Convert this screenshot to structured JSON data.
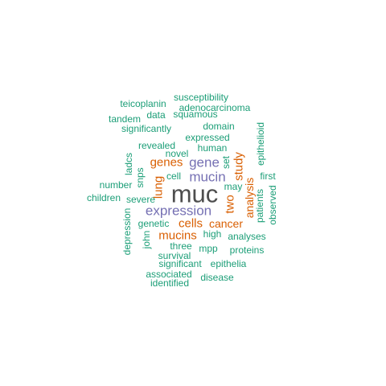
{
  "palette": {
    "teal": "#1b9e77",
    "orange": "#d95f02",
    "purple": "#7570b3",
    "gray": "#4d4d4d"
  },
  "words": [
    {
      "text": "muc",
      "weight": 10,
      "color": "gray",
      "orientation": "horizontal"
    },
    {
      "text": "expression",
      "weight": 6,
      "color": "purple",
      "orientation": "horizontal"
    },
    {
      "text": "mucin",
      "weight": 6,
      "color": "purple",
      "orientation": "horizontal"
    },
    {
      "text": "gene",
      "weight": 6,
      "color": "purple",
      "orientation": "horizontal"
    },
    {
      "text": "genes",
      "weight": 5,
      "color": "orange",
      "orientation": "horizontal"
    },
    {
      "text": "cells",
      "weight": 5,
      "color": "orange",
      "orientation": "horizontal"
    },
    {
      "text": "mucins",
      "weight": 5,
      "color": "orange",
      "orientation": "horizontal"
    },
    {
      "text": "cancer",
      "weight": 5,
      "color": "orange",
      "orientation": "horizontal"
    },
    {
      "text": "lung",
      "weight": 5,
      "color": "orange",
      "orientation": "vertical"
    },
    {
      "text": "two",
      "weight": 5,
      "color": "orange",
      "orientation": "vertical"
    },
    {
      "text": "study",
      "weight": 5,
      "color": "orange",
      "orientation": "vertical"
    },
    {
      "text": "analysis",
      "weight": 5,
      "color": "orange",
      "orientation": "vertical"
    },
    {
      "text": "susceptibility",
      "weight": 3,
      "color": "teal",
      "orientation": "horizontal"
    },
    {
      "text": "teicoplanin",
      "weight": 3,
      "color": "teal",
      "orientation": "horizontal"
    },
    {
      "text": "adenocarcinoma",
      "weight": 3,
      "color": "teal",
      "orientation": "horizontal"
    },
    {
      "text": "data",
      "weight": 3,
      "color": "teal",
      "orientation": "horizontal"
    },
    {
      "text": "squamous",
      "weight": 3,
      "color": "teal",
      "orientation": "horizontal"
    },
    {
      "text": "tandem",
      "weight": 3,
      "color": "teal",
      "orientation": "horizontal"
    },
    {
      "text": "significantly",
      "weight": 3,
      "color": "teal",
      "orientation": "horizontal"
    },
    {
      "text": "domain",
      "weight": 3,
      "color": "teal",
      "orientation": "horizontal"
    },
    {
      "text": "expressed",
      "weight": 3,
      "color": "teal",
      "orientation": "horizontal"
    },
    {
      "text": "revealed",
      "weight": 3,
      "color": "teal",
      "orientation": "horizontal"
    },
    {
      "text": "human",
      "weight": 3,
      "color": "teal",
      "orientation": "horizontal"
    },
    {
      "text": "novel",
      "weight": 3,
      "color": "teal",
      "orientation": "horizontal"
    },
    {
      "text": "cell",
      "weight": 3,
      "color": "teal",
      "orientation": "horizontal"
    },
    {
      "text": "number",
      "weight": 3,
      "color": "teal",
      "orientation": "horizontal"
    },
    {
      "text": "children",
      "weight": 3,
      "color": "teal",
      "orientation": "horizontal"
    },
    {
      "text": "severe",
      "weight": 3,
      "color": "teal",
      "orientation": "horizontal"
    },
    {
      "text": "may",
      "weight": 3,
      "color": "teal",
      "orientation": "horizontal"
    },
    {
      "text": "first",
      "weight": 3,
      "color": "teal",
      "orientation": "horizontal"
    },
    {
      "text": "genetic",
      "weight": 3,
      "color": "teal",
      "orientation": "horizontal"
    },
    {
      "text": "high",
      "weight": 3,
      "color": "teal",
      "orientation": "horizontal"
    },
    {
      "text": "analyses",
      "weight": 3,
      "color": "teal",
      "orientation": "horizontal"
    },
    {
      "text": "three",
      "weight": 3,
      "color": "teal",
      "orientation": "horizontal"
    },
    {
      "text": "mpp",
      "weight": 3,
      "color": "teal",
      "orientation": "horizontal"
    },
    {
      "text": "proteins",
      "weight": 3,
      "color": "teal",
      "orientation": "horizontal"
    },
    {
      "text": "survival",
      "weight": 3,
      "color": "teal",
      "orientation": "horizontal"
    },
    {
      "text": "significant",
      "weight": 3,
      "color": "teal",
      "orientation": "horizontal"
    },
    {
      "text": "epithelia",
      "weight": 3,
      "color": "teal",
      "orientation": "horizontal"
    },
    {
      "text": "associated",
      "weight": 3,
      "color": "teal",
      "orientation": "horizontal"
    },
    {
      "text": "disease",
      "weight": 3,
      "color": "teal",
      "orientation": "horizontal"
    },
    {
      "text": "identified",
      "weight": 3,
      "color": "teal",
      "orientation": "horizontal"
    },
    {
      "text": "epithelioid",
      "weight": 3,
      "color": "teal",
      "orientation": "vertical"
    },
    {
      "text": "ladcs",
      "weight": 3,
      "color": "teal",
      "orientation": "vertical"
    },
    {
      "text": "snps",
      "weight": 3,
      "color": "teal",
      "orientation": "vertical"
    },
    {
      "text": "set",
      "weight": 3,
      "color": "teal",
      "orientation": "vertical"
    },
    {
      "text": "patients",
      "weight": 3,
      "color": "teal",
      "orientation": "vertical"
    },
    {
      "text": "observed",
      "weight": 3,
      "color": "teal",
      "orientation": "vertical"
    },
    {
      "text": "depression",
      "weight": 3,
      "color": "teal",
      "orientation": "vertical"
    },
    {
      "text": "john",
      "weight": 3,
      "color": "teal",
      "orientation": "vertical"
    }
  ]
}
